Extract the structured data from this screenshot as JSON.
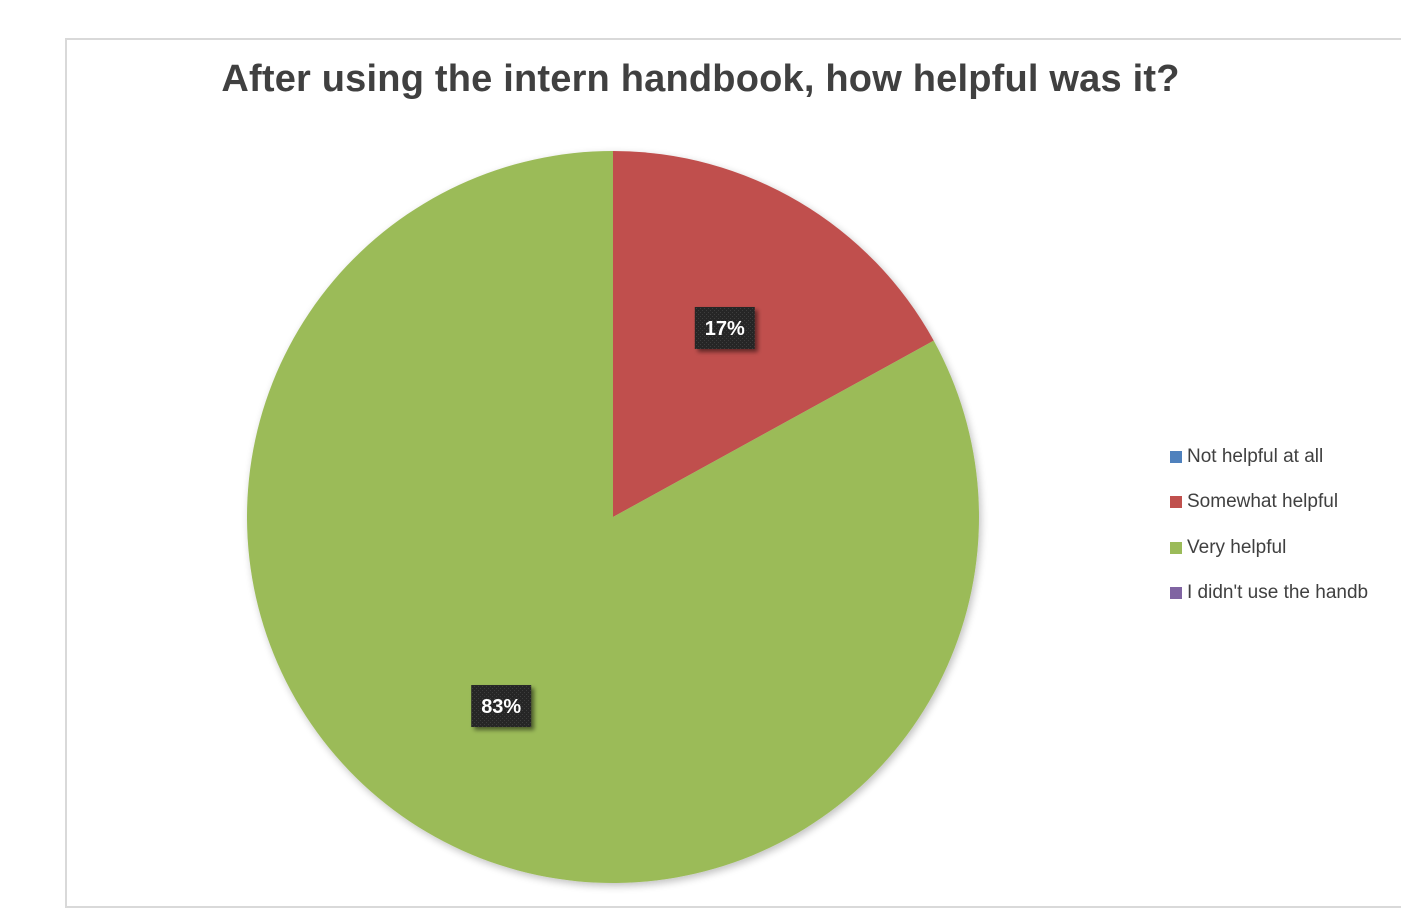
{
  "chart_data": {
    "type": "pie",
    "title": "After using the intern handbook, how helpful was it?",
    "categories": [
      "Not helpful at all",
      "Somewhat helpful",
      "Very helpful",
      "I didn't use the handb"
    ],
    "values": [
      0,
      17,
      83,
      0
    ],
    "data_labels": [
      "",
      "17%",
      "83%",
      ""
    ],
    "colors": [
      "#4f81bd",
      "#c0504d",
      "#9bbb59",
      "#8064a2"
    ],
    "start_angle_deg": 0,
    "direction": "clockwise",
    "legend_position": "right"
  }
}
